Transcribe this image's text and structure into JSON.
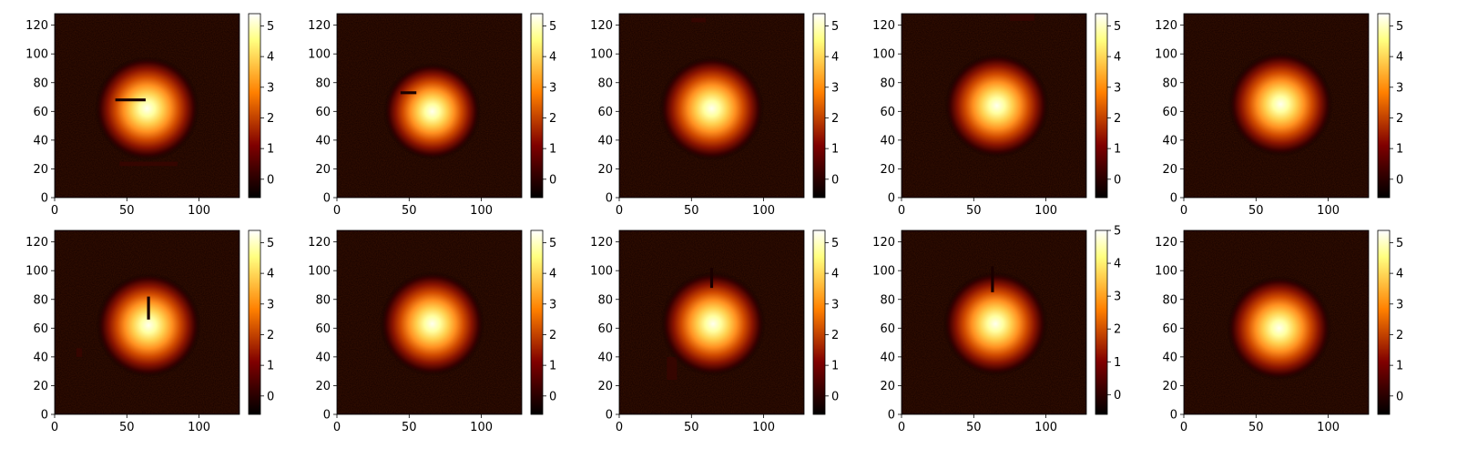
{
  "figure": {
    "layout": "2 rows x 5 columns of heatmap panels, each with a colorbar"
  },
  "colormap": {
    "name": "afmhot",
    "stops": [
      "#000000",
      "#3c0000",
      "#800000",
      "#c04000",
      "#ff8000",
      "#ffc040",
      "#ffff80",
      "#ffffff"
    ]
  },
  "chart_data": [
    {
      "type": "heatmap",
      "xlim": [
        0,
        128
      ],
      "ylim": [
        0,
        128
      ],
      "xticks": [
        0,
        50,
        100
      ],
      "yticks": [
        0,
        20,
        40,
        60,
        80,
        100,
        120
      ],
      "clim": [
        -0.6,
        5.4
      ],
      "cbar_ticks": [
        0,
        1,
        2,
        3,
        4,
        5
      ],
      "blob": {
        "cx": 64,
        "cy": 62,
        "sigma": 14
      },
      "streaks": [
        {
          "x0": 42,
          "y0": 68,
          "x1": 63,
          "y1": 68
        }
      ],
      "patches": [
        {
          "x0": 45,
          "y0": 22,
          "x1": 85,
          "y1": 25
        }
      ]
    },
    {
      "type": "heatmap",
      "xlim": [
        0,
        128
      ],
      "ylim": [
        0,
        128
      ],
      "xticks": [
        0,
        50,
        100
      ],
      "yticks": [
        0,
        20,
        40,
        60,
        80,
        100,
        120
      ],
      "clim": [
        -0.6,
        5.4
      ],
      "cbar_ticks": [
        0,
        1,
        2,
        3,
        4,
        5
      ],
      "blob": {
        "cx": 66,
        "cy": 60,
        "sigma": 13
      },
      "streaks": [
        {
          "x0": 44,
          "y0": 73,
          "x1": 55,
          "y1": 73
        }
      ],
      "patches": []
    },
    {
      "type": "heatmap",
      "xlim": [
        0,
        128
      ],
      "ylim": [
        0,
        128
      ],
      "xticks": [
        0,
        50,
        100
      ],
      "yticks": [
        0,
        20,
        40,
        60,
        80,
        100,
        120
      ],
      "clim": [
        -0.6,
        5.4
      ],
      "cbar_ticks": [
        0,
        1,
        2,
        3,
        4,
        5
      ],
      "blob": {
        "cx": 64,
        "cy": 62,
        "sigma": 14
      },
      "streaks": [],
      "patches": [
        {
          "x0": 50,
          "y0": 122,
          "x1": 60,
          "y1": 125
        }
      ]
    },
    {
      "type": "heatmap",
      "xlim": [
        0,
        128
      ],
      "ylim": [
        0,
        128
      ],
      "xticks": [
        0,
        50,
        100
      ],
      "yticks": [
        0,
        20,
        40,
        60,
        80,
        100,
        120
      ],
      "clim": [
        -0.6,
        5.4
      ],
      "cbar_ticks": [
        0,
        1,
        2,
        3,
        4,
        5
      ],
      "blob": {
        "cx": 66,
        "cy": 64,
        "sigma": 14
      },
      "streaks": [],
      "patches": [
        {
          "x0": 75,
          "y0": 123,
          "x1": 92,
          "y1": 128
        }
      ]
    },
    {
      "type": "heatmap",
      "xlim": [
        0,
        128
      ],
      "ylim": [
        0,
        128
      ],
      "xticks": [
        0,
        50,
        100
      ],
      "yticks": [
        0,
        20,
        40,
        60,
        80,
        100,
        120
      ],
      "clim": [
        -0.6,
        5.4
      ],
      "cbar_ticks": [
        0,
        1,
        2,
        3,
        4,
        5
      ],
      "blob": {
        "cx": 67,
        "cy": 65,
        "sigma": 14
      },
      "streaks": [],
      "patches": []
    },
    {
      "type": "heatmap",
      "xlim": [
        0,
        128
      ],
      "ylim": [
        0,
        128
      ],
      "xticks": [
        0,
        50,
        100
      ],
      "yticks": [
        0,
        20,
        40,
        60,
        80,
        100,
        120
      ],
      "clim": [
        -0.6,
        5.4
      ],
      "cbar_ticks": [
        0,
        1,
        2,
        3,
        4,
        5
      ],
      "blob": {
        "cx": 65,
        "cy": 62,
        "sigma": 14
      },
      "streaks": [
        {
          "x0": 65,
          "y0": 66,
          "x1": 65,
          "y1": 82
        }
      ],
      "patches": [
        {
          "x0": 15,
          "y0": 40,
          "x1": 19,
          "y1": 46
        }
      ]
    },
    {
      "type": "heatmap",
      "xlim": [
        0,
        128
      ],
      "ylim": [
        0,
        128
      ],
      "xticks": [
        0,
        50,
        100
      ],
      "yticks": [
        0,
        20,
        40,
        60,
        80,
        100,
        120
      ],
      "clim": [
        -0.6,
        5.4
      ],
      "cbar_ticks": [
        0,
        1,
        2,
        3,
        4,
        5
      ],
      "blob": {
        "cx": 66,
        "cy": 63,
        "sigma": 14
      },
      "streaks": [],
      "patches": []
    },
    {
      "type": "heatmap",
      "xlim": [
        0,
        128
      ],
      "ylim": [
        0,
        128
      ],
      "xticks": [
        0,
        50,
        100
      ],
      "yticks": [
        0,
        20,
        40,
        60,
        80,
        100,
        120
      ],
      "clim": [
        -0.6,
        5.4
      ],
      "cbar_ticks": [
        0,
        1,
        2,
        3,
        4,
        5
      ],
      "blob": {
        "cx": 65,
        "cy": 63,
        "sigma": 14
      },
      "streaks": [
        {
          "x0": 64,
          "y0": 88,
          "x1": 64,
          "y1": 102
        }
      ],
      "patches": [
        {
          "x0": 33,
          "y0": 24,
          "x1": 40,
          "y1": 40
        }
      ]
    },
    {
      "type": "heatmap",
      "xlim": [
        0,
        128
      ],
      "ylim": [
        0,
        128
      ],
      "xticks": [
        0,
        50,
        100
      ],
      "yticks": [
        0,
        20,
        40,
        60,
        80,
        100,
        120
      ],
      "clim": [
        -0.6,
        5.0
      ],
      "cbar_ticks": [
        0,
        1,
        2,
        3,
        4,
        5
      ],
      "blob": {
        "cx": 65,
        "cy": 63,
        "sigma": 14
      },
      "streaks": [
        {
          "x0": 63,
          "y0": 85,
          "x1": 63,
          "y1": 103
        }
      ],
      "patches": []
    },
    {
      "type": "heatmap",
      "xlim": [
        0,
        128
      ],
      "ylim": [
        0,
        128
      ],
      "xticks": [
        0,
        50,
        100
      ],
      "yticks": [
        0,
        20,
        40,
        60,
        80,
        100,
        120
      ],
      "clim": [
        -0.6,
        5.4
      ],
      "cbar_ticks": [
        0,
        1,
        2,
        3,
        4,
        5
      ],
      "blob": {
        "cx": 66,
        "cy": 60,
        "sigma": 14
      },
      "streaks": [],
      "patches": []
    }
  ]
}
